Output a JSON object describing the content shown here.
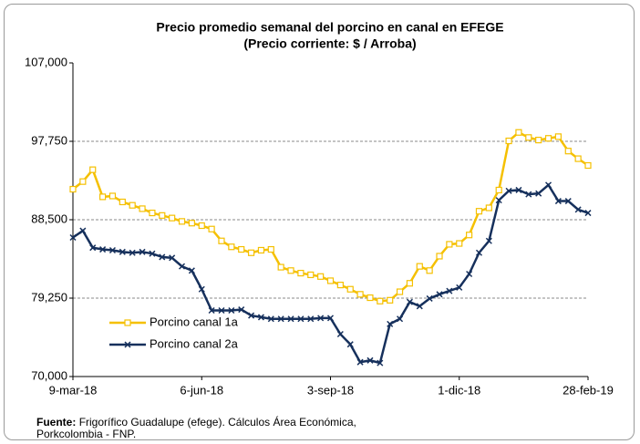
{
  "chart_data": {
    "type": "line",
    "title": "Precio promedio semanal del porcino en canal en EFEGE",
    "subtitle": "(Precio corriente: $ / Arroba)",
    "categories": [
      "9-mar-18",
      null,
      null,
      null,
      null,
      null,
      null,
      null,
      null,
      null,
      null,
      null,
      null,
      "6-jun-18",
      null,
      null,
      null,
      null,
      null,
      null,
      null,
      null,
      null,
      null,
      null,
      null,
      "3-sep-18",
      null,
      null,
      null,
      null,
      null,
      null,
      null,
      null,
      null,
      null,
      null,
      null,
      "1-dic-18",
      null,
      null,
      null,
      null,
      null,
      null,
      null,
      null,
      null,
      null,
      null,
      null,
      "28-feb-19"
    ],
    "series": [
      {
        "name": "Porcino canal 1a",
        "color": "#f5c000",
        "marker": "square",
        "values": [
          92100,
          93000,
          94400,
          91200,
          91300,
          90600,
          90200,
          89800,
          89300,
          89000,
          88700,
          88300,
          88100,
          87800,
          87400,
          86000,
          85300,
          85000,
          84600,
          84900,
          85000,
          82900,
          82500,
          82200,
          82000,
          81800,
          81300,
          80800,
          80300,
          79700,
          79300,
          78900,
          79000,
          80000,
          81000,
          83000,
          82500,
          84200,
          85600,
          85700,
          86700,
          89500,
          89900,
          92000,
          97800,
          98800,
          98200,
          97900,
          98100,
          98300,
          96600,
          95700,
          94900
        ]
      },
      {
        "name": "Porcino canal 2a",
        "color": "#16305c",
        "marker": "x",
        "values": [
          86400,
          87200,
          85200,
          85000,
          84900,
          84700,
          84600,
          84700,
          84500,
          84100,
          84000,
          83000,
          82500,
          80300,
          77800,
          77800,
          77800,
          77900,
          77200,
          77000,
          76800,
          76800,
          76800,
          76800,
          76800,
          76900,
          76900,
          75000,
          73800,
          71700,
          71900,
          71600,
          76200,
          76800,
          78800,
          78300,
          79200,
          79700,
          80100,
          80500,
          82100,
          84600,
          86000,
          90800,
          91900,
          92000,
          91500,
          91600,
          92600,
          90700,
          90700,
          89700,
          89300
        ]
      }
    ],
    "ylim": [
      70000,
      107000
    ],
    "yticks": [
      {
        "value": 70000,
        "label": "70,000"
      },
      {
        "value": 79250,
        "label": "79,250"
      },
      {
        "value": 88500,
        "label": "88,500"
      },
      {
        "value": 97750,
        "label": "97,750"
      },
      {
        "value": 107000,
        "label": "107,000"
      }
    ],
    "grid": true,
    "legend": "lower-left",
    "source_label": "Fuente:",
    "source_lines": [
      "Frigorífico Guadalupe (efege). Cálculos Área Económica,",
      "Porkcolombia - FNP."
    ]
  }
}
